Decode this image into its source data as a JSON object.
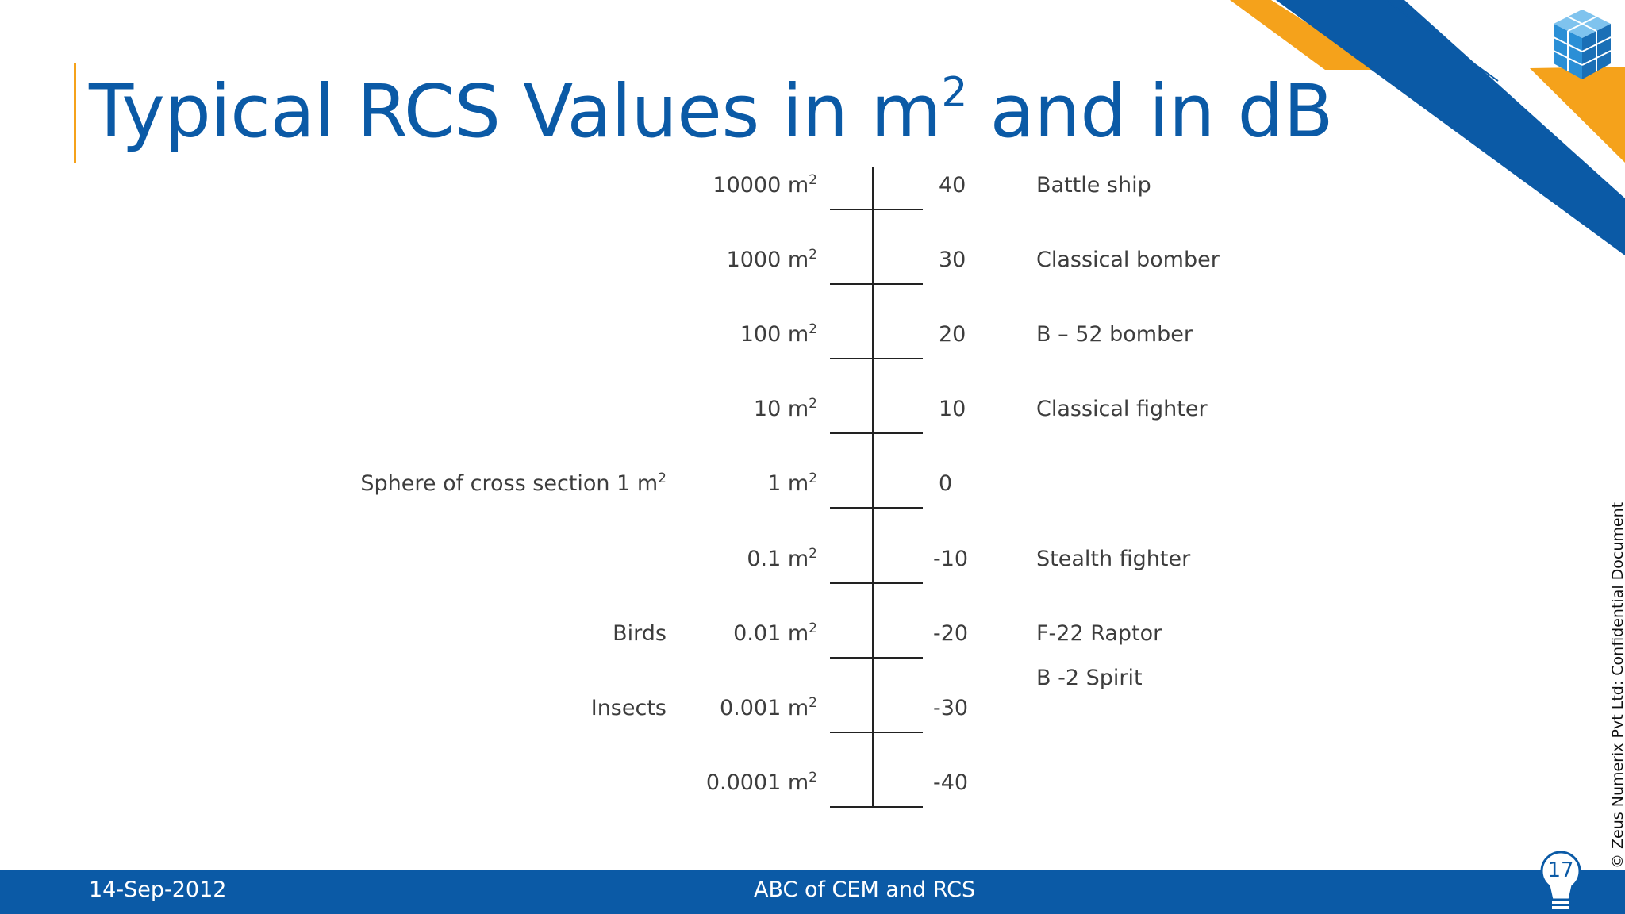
{
  "slide": {
    "title_main": "Typical RCS Values in m",
    "title_sup": "2",
    "title_rest": " and in dB"
  },
  "scale": {
    "rows": [
      {
        "area": "10000 m",
        "db": "40",
        "object": "Battle ship",
        "left_label": ""
      },
      {
        "area": "1000 m",
        "db": "30",
        "object": "Classical bomber",
        "left_label": ""
      },
      {
        "area": "100 m",
        "db": "20",
        "object": "B – 52 bomber",
        "left_label": ""
      },
      {
        "area": "10 m",
        "db": "10",
        "object": "Classical fighter",
        "left_label": ""
      },
      {
        "area": "1 m",
        "db": "0",
        "object": "",
        "left_label": "Sphere of cross section 1 m"
      },
      {
        "area": "0.1 m",
        "db": "-10",
        "object": "Stealth fighter",
        "left_label": ""
      },
      {
        "area": "0.01 m",
        "db": "-20",
        "object": "F-22 Raptor",
        "left_label": "Birds"
      },
      {
        "area": "0.001 m",
        "db": "-30",
        "object": "",
        "left_label": "Insects"
      },
      {
        "area": "0.0001 m",
        "db": "-40",
        "object": "",
        "left_label": ""
      }
    ],
    "extra_object": "B -2 Spirit",
    "sup": "2"
  },
  "footer": {
    "date": "14-Sep-2012",
    "center": "ABC of CEM and RCS",
    "page": "17"
  },
  "side_copyright": "© Zeus Numerix Pvt Ltd: Confidential Document",
  "colors": {
    "brand_blue": "#0b5aa6",
    "accent_orange": "#f5a21b",
    "text": "#3d3d3d"
  },
  "icons": [
    "cube-logo-icon",
    "lightbulb-icon"
  ]
}
